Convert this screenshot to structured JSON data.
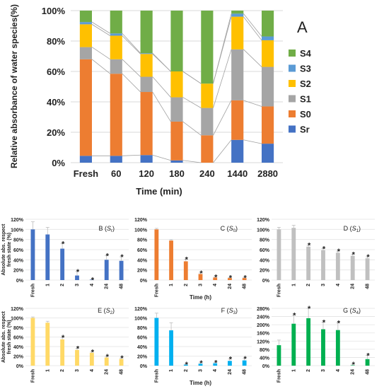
{
  "chart_data": [
    {
      "type": "bar",
      "stacked": true,
      "panel_letter": "A",
      "xlabel": "Time (min)",
      "ylabel": "Relative absorbance of water species(%)",
      "categories": [
        "Fresh",
        "60",
        "120",
        "180",
        "240",
        "1440",
        "2880"
      ],
      "yticks": [
        "0%",
        "20%",
        "40%",
        "60%",
        "80%",
        "100%"
      ],
      "ylim": [
        0,
        100
      ],
      "grid": true,
      "legend": "right",
      "series": [
        {
          "name": "Sr",
          "color": "#4472c4",
          "values": [
            4.5,
            4.5,
            5,
            1.5,
            0,
            15,
            12.5
          ]
        },
        {
          "name": "S0",
          "color": "#ed7d31",
          "values": [
            63.5,
            54,
            41.5,
            25.5,
            18,
            26,
            24.5
          ]
        },
        {
          "name": "S1",
          "color": "#a5a5a5",
          "values": [
            8,
            9.5,
            10,
            16,
            18,
            33.5,
            26
          ]
        },
        {
          "name": "S2",
          "color": "#ffc000",
          "values": [
            15,
            15.5,
            15,
            17,
            16,
            21.5,
            17.5
          ]
        },
        {
          "name": "S3",
          "color": "#5b9bd5",
          "values": [
            1.5,
            1.5,
            0.5,
            0,
            0,
            2,
            2.5
          ]
        },
        {
          "name": "S4",
          "color": "#70ad47",
          "values": [
            7.5,
            15,
            28,
            40,
            48,
            2,
            17
          ]
        }
      ]
    },
    {
      "type": "bar",
      "panel_label": "B",
      "species": "r",
      "color": "#4472c4",
      "ylabel": "Absolute abs. respect fresh state (%)",
      "xlabel": "",
      "categories": [
        "Fresh",
        "1",
        "2",
        "3",
        "4",
        "24",
        "48"
      ],
      "yticks": [
        "0%",
        "20%",
        "40%",
        "60%",
        "80%",
        "100%",
        "120%"
      ],
      "ylim": [
        0,
        120
      ],
      "values": [
        100,
        90,
        62,
        9,
        1,
        40,
        38
      ],
      "errors": [
        15,
        14,
        10,
        8,
        0,
        8,
        8
      ],
      "significant": [
        false,
        false,
        true,
        true,
        true,
        true,
        true
      ]
    },
    {
      "type": "bar",
      "panel_label": "C",
      "species": "0",
      "color": "#ed7d31",
      "ylabel": "",
      "xlabel": "Time (h)",
      "categories": [
        "Fresh",
        "1",
        "2",
        "3",
        "4",
        "24",
        "48"
      ],
      "yticks": [
        "0%",
        "20%",
        "40%",
        "60%",
        "80%",
        "100%",
        "120%"
      ],
      "ylim": [
        0,
        120
      ],
      "values": [
        100,
        78,
        37,
        12,
        5,
        4,
        4
      ],
      "errors": [
        2,
        2,
        4,
        2,
        1,
        1,
        1
      ],
      "significant": [
        false,
        false,
        true,
        true,
        true,
        true,
        true
      ]
    },
    {
      "type": "bar",
      "panel_label": "D",
      "species": "1",
      "color": "#c0c0c0",
      "ylabel": "",
      "xlabel": "",
      "categories": [
        "Fresh",
        "1",
        "2",
        "3",
        "4",
        "24",
        "48"
      ],
      "yticks": [
        "0%",
        "20%",
        "40%",
        "60%",
        "80%",
        "100%",
        "120%"
      ],
      "ylim": [
        0,
        120
      ],
      "values": [
        100,
        103,
        66,
        59,
        54,
        48,
        43
      ],
      "errors": [
        4,
        5,
        3,
        3,
        3,
        3,
        3
      ],
      "significant": [
        false,
        false,
        true,
        true,
        true,
        true,
        true
      ]
    },
    {
      "type": "bar",
      "panel_label": "E",
      "species": "2",
      "color": "#ffd966",
      "ylabel": "Absolute abs. respect fresh state (%)",
      "xlabel": "",
      "categories": [
        "Fresh",
        "1",
        "2",
        "3",
        "4",
        "24",
        "48"
      ],
      "yticks": [
        "0%",
        "20%",
        "40%",
        "60%",
        "80%",
        "100%",
        "120%"
      ],
      "ylim": [
        0,
        120
      ],
      "values": [
        100,
        90,
        55,
        33,
        27,
        17,
        14
      ],
      "errors": [
        2,
        3,
        4,
        3,
        2,
        2,
        2
      ],
      "significant": [
        false,
        false,
        true,
        true,
        true,
        true,
        true
      ]
    },
    {
      "type": "bar",
      "panel_label": "F",
      "species": "3",
      "color": "#00b0f0",
      "ylabel": "",
      "xlabel": "Time (h)",
      "categories": [
        "Fresh",
        "1",
        "2",
        "3",
        "4",
        "24",
        "48"
      ],
      "yticks": [
        "0%",
        "20%",
        "40%",
        "60%",
        "80%",
        "100%",
        "120%"
      ],
      "ylim": [
        0,
        120
      ],
      "values": [
        100,
        74,
        2,
        4,
        5,
        10,
        11
      ],
      "errors": [
        10,
        16,
        1,
        2,
        2,
        4,
        4
      ],
      "significant": [
        false,
        false,
        true,
        true,
        true,
        true,
        true
      ]
    },
    {
      "type": "bar",
      "panel_label": "G",
      "species": "4",
      "color": "#00b050",
      "ylabel": "",
      "xlabel": "",
      "categories": [
        "Fresh",
        "1",
        "2",
        "3",
        "4",
        "24",
        "48"
      ],
      "yticks": [
        "0%",
        "40%",
        "80%",
        "120%",
        "160%",
        "200%",
        "240%",
        "280%"
      ],
      "ylim": [
        0,
        280
      ],
      "values": [
        100,
        205,
        232,
        178,
        174,
        2,
        32
      ],
      "errors": [
        25,
        42,
        48,
        35,
        35,
        5,
        18
      ],
      "significant": [
        false,
        true,
        true,
        true,
        true,
        true,
        true
      ]
    }
  ]
}
